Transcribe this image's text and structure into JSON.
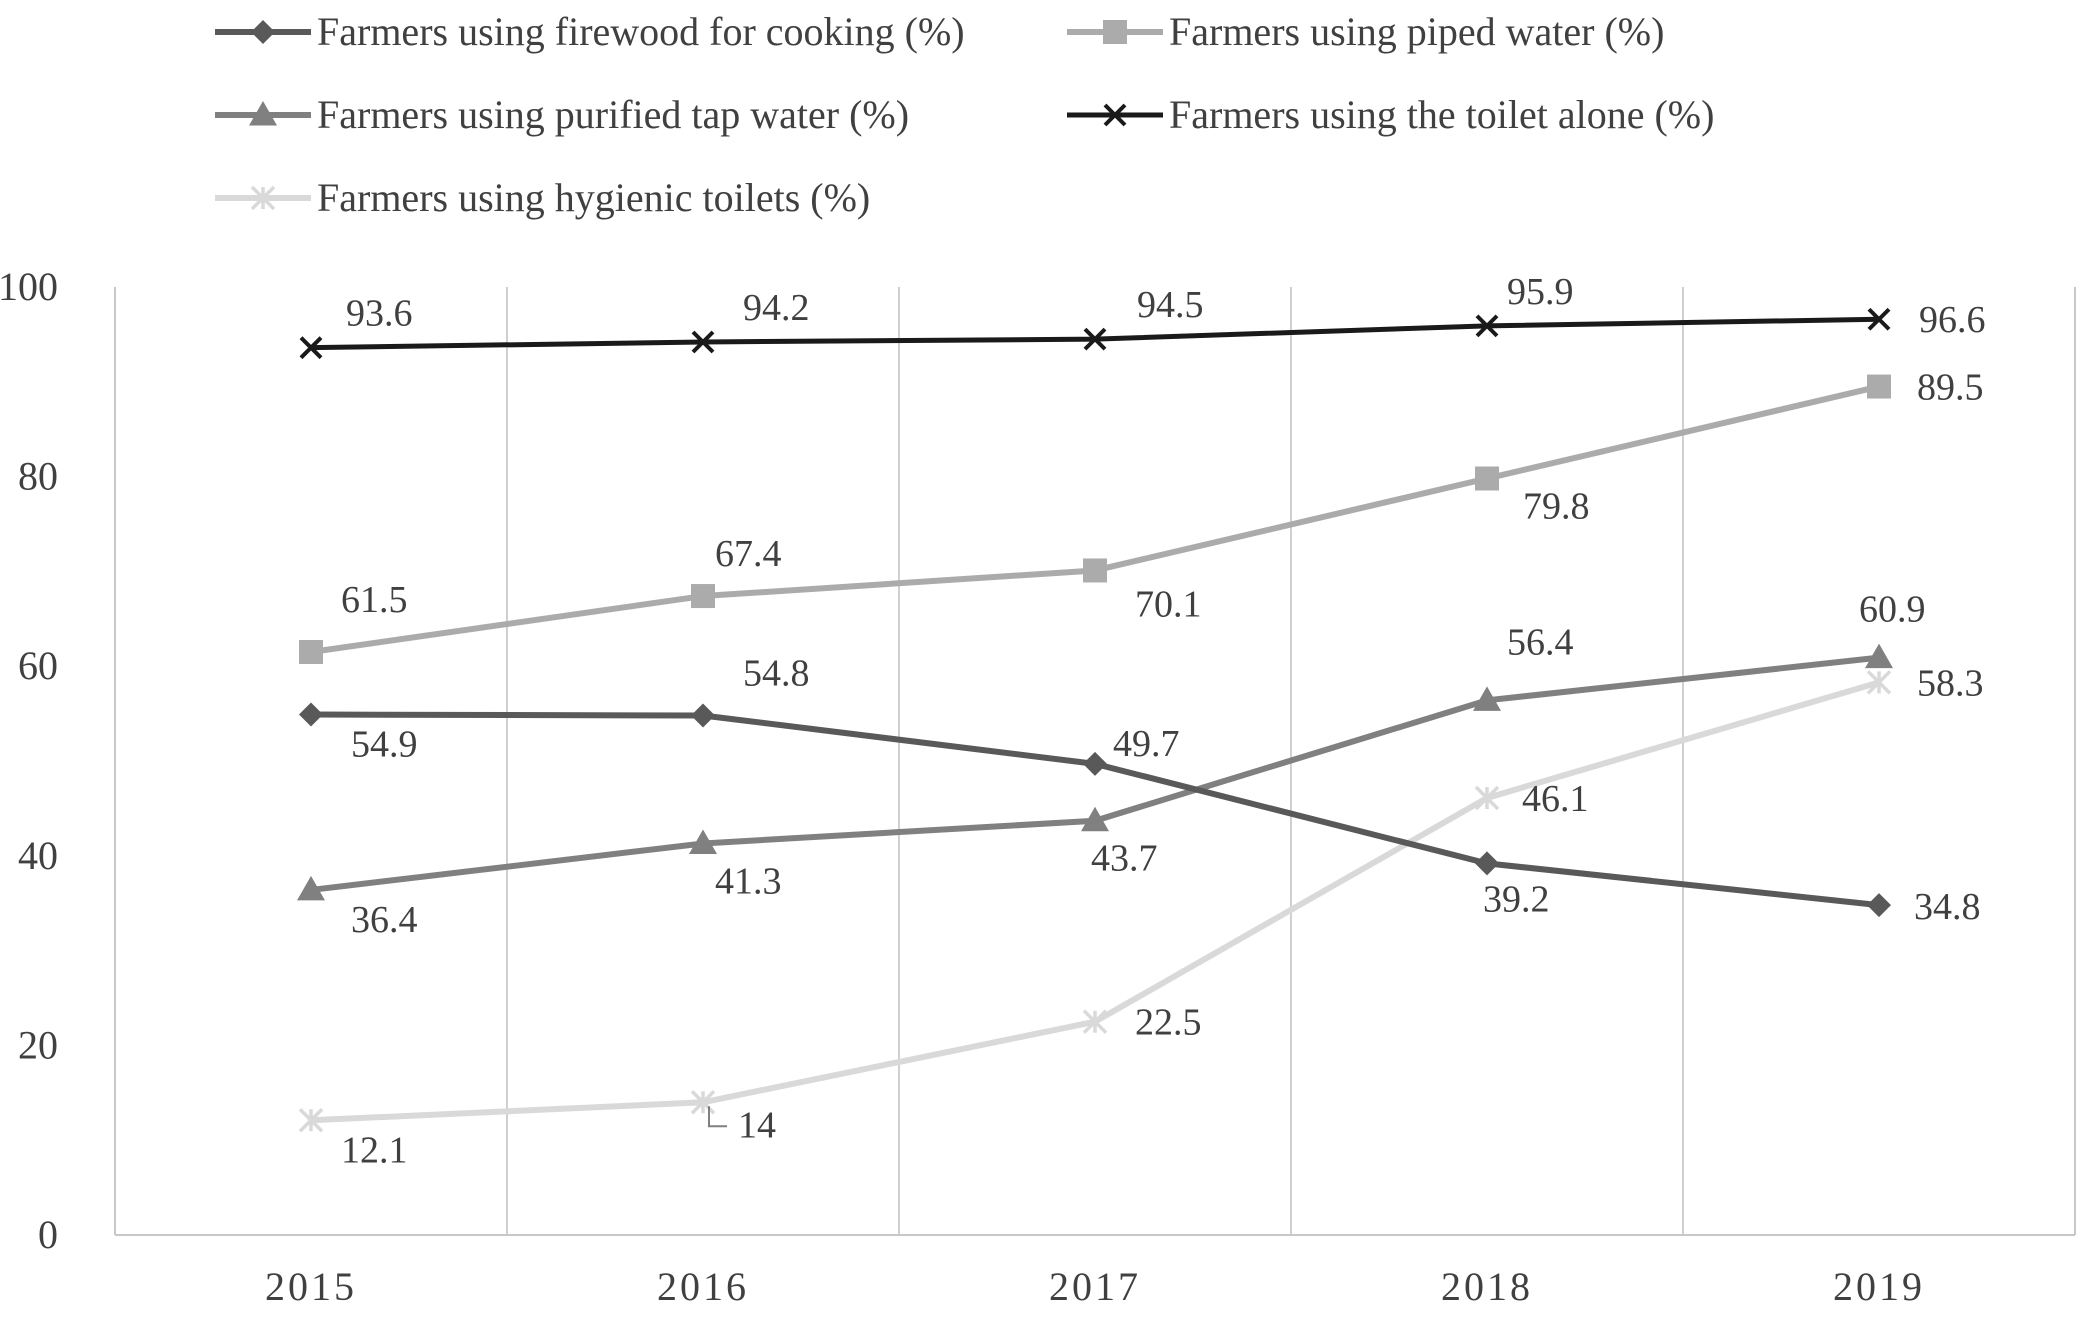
{
  "chart_data": {
    "type": "line",
    "title": "",
    "xlabel": "",
    "ylabel": "",
    "categories": [
      "2015",
      "2016",
      "2017",
      "2018",
      "2019"
    ],
    "ylim": [
      0,
      100
    ],
    "yticks": [
      "0",
      "20",
      "40",
      "60",
      "80",
      "100"
    ],
    "grid": "vertical",
    "legend_position": "top",
    "series": [
      {
        "name": "Farmers using firewood for cooking (%)",
        "marker": "diamond",
        "color": "#595959",
        "values": [
          54.9,
          54.8,
          49.7,
          39.2,
          34.8
        ],
        "labels": [
          "54.9",
          "54.8",
          "49.7",
          "39.2",
          "34.8"
        ]
      },
      {
        "name": "Farmers using piped water (%)",
        "marker": "square",
        "color": "#ababab",
        "values": [
          61.5,
          67.4,
          70.1,
          79.8,
          89.5
        ],
        "labels": [
          "61.5",
          "67.4",
          "70.1",
          "79.8",
          "89.5"
        ]
      },
      {
        "name": "Farmers using purified tap water (%)",
        "marker": "triangle",
        "color": "#808080",
        "values": [
          36.4,
          41.3,
          43.7,
          56.4,
          60.9
        ],
        "labels": [
          "36.4",
          "41.3",
          "43.7",
          "56.4",
          "60.9"
        ]
      },
      {
        "name": "Farmers using the toilet alone (%)",
        "marker": "x",
        "color": "#1a1a1a",
        "values": [
          93.6,
          94.2,
          94.5,
          95.9,
          96.6
        ],
        "labels": [
          "93.6",
          "94.2",
          "94.5",
          "95.9",
          "96.6"
        ]
      },
      {
        "name": "Farmers using hygienic toilets (%)",
        "marker": "star",
        "color": "#d9d9d9",
        "values": [
          12.1,
          14,
          22.5,
          46.1,
          58.3
        ],
        "labels": [
          "12.1",
          "14",
          "22.5",
          "46.1",
          "58.3"
        ]
      }
    ]
  }
}
